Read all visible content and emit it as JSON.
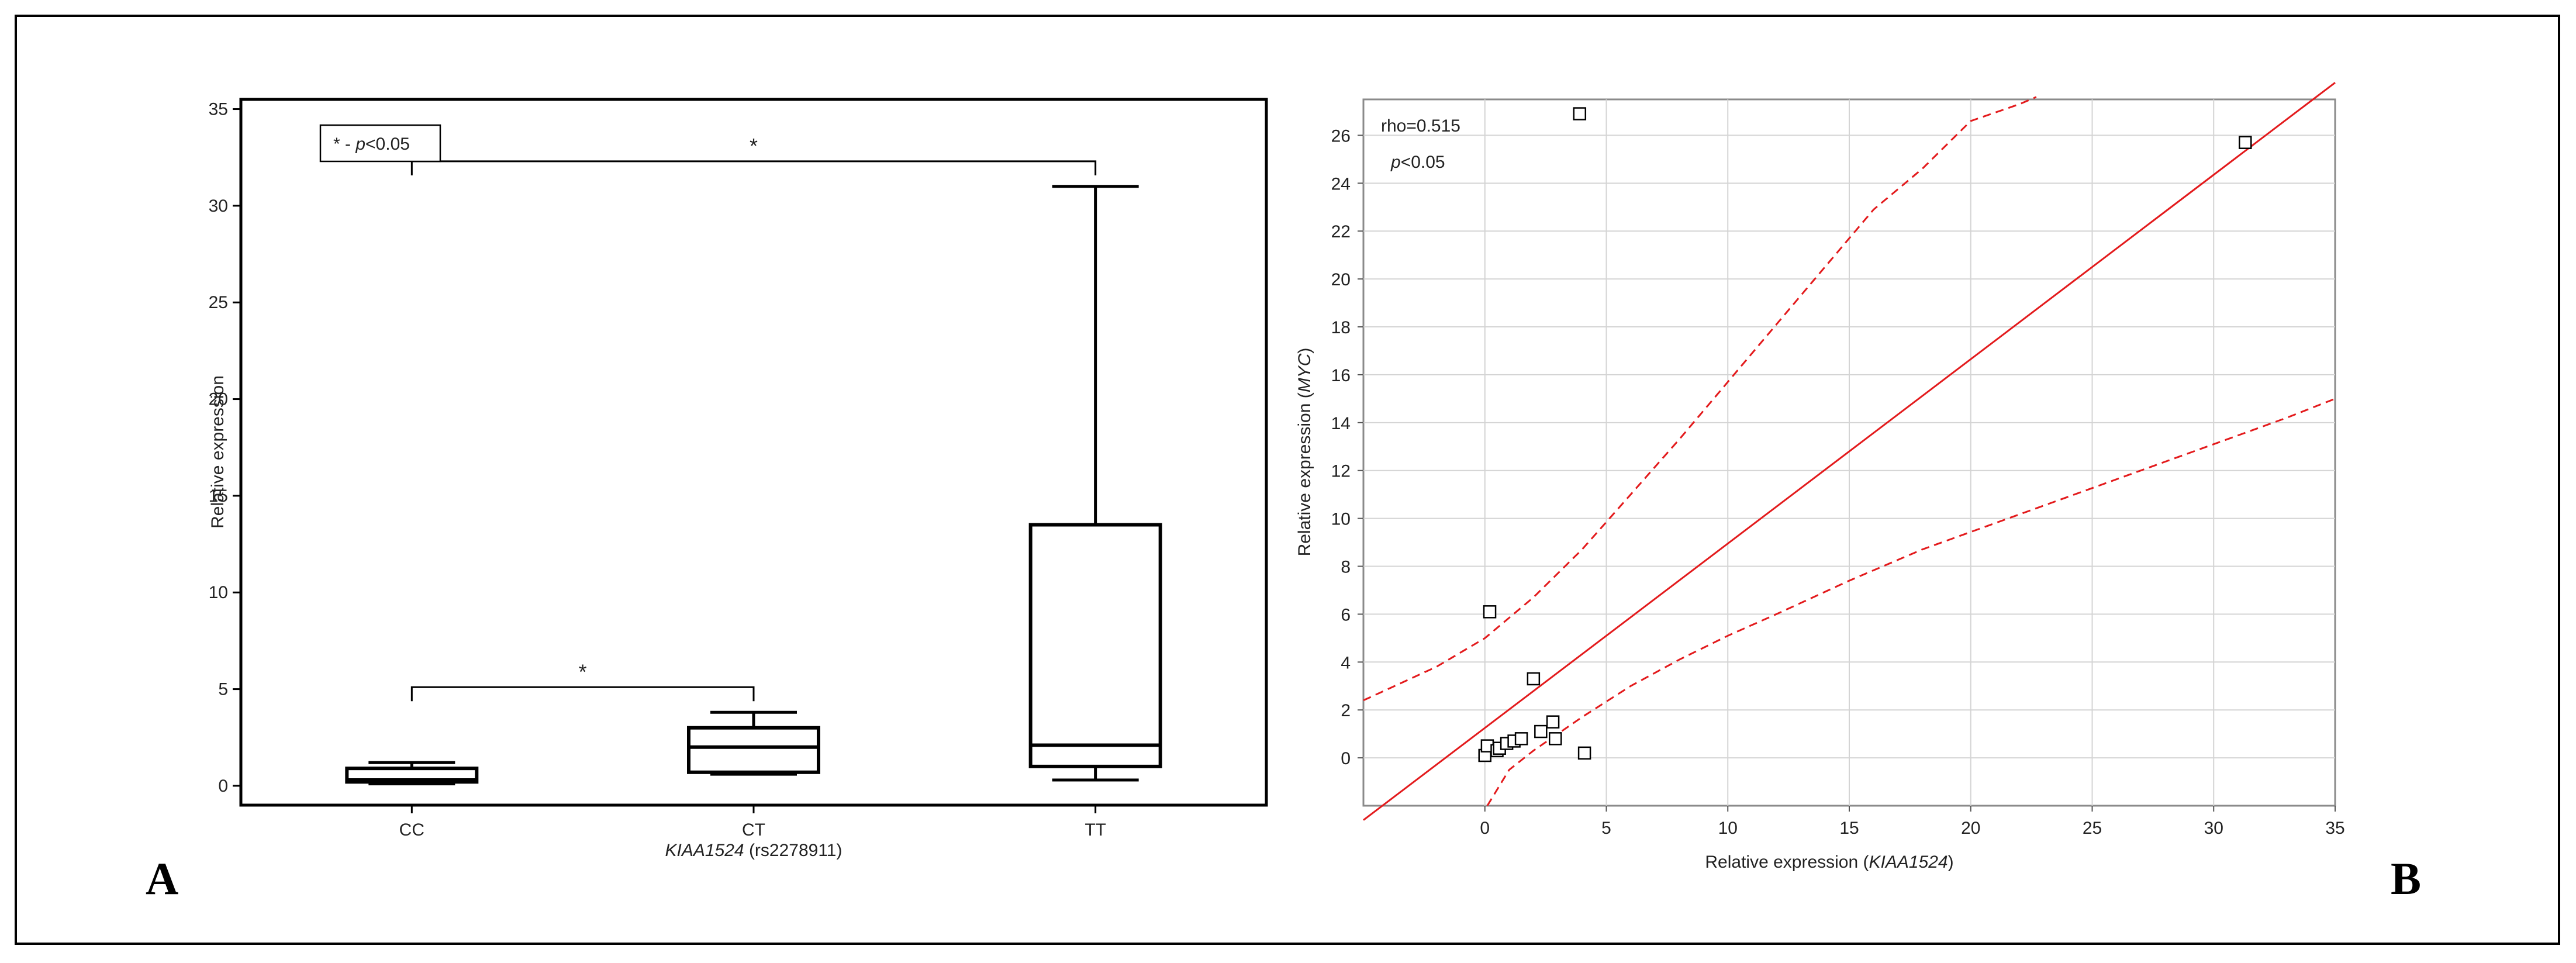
{
  "figure": {
    "panel_a_letter": "A",
    "panel_b_letter": "B"
  },
  "chart_data": [
    {
      "type": "box",
      "title": "",
      "xlabel": "KIAA1524 (rs2278911)",
      "xlabel_italic": "KIAA1524",
      "xlabel_rest": " (rs2278911)",
      "ylabel": "Relative expression",
      "ylim": [
        -1,
        35.5
      ],
      "yticks": [
        0,
        5,
        10,
        15,
        20,
        25,
        30,
        35
      ],
      "categories": [
        "CC",
        "CT",
        "TT"
      ],
      "boxes": [
        {
          "category": "CC",
          "whisker_low": 0.1,
          "q1": 0.2,
          "median": 0.3,
          "q3": 0.9,
          "whisker_high": 1.2
        },
        {
          "category": "CT",
          "whisker_low": 0.6,
          "q1": 0.7,
          "median": 2.0,
          "q3": 3.0,
          "whisker_high": 3.8
        },
        {
          "category": "TT",
          "whisker_low": 0.3,
          "q1": 1.0,
          "median": 2.1,
          "q3": 13.5,
          "whisker_high": 31.0
        }
      ],
      "significance": [
        {
          "from": "CC",
          "to": "TT",
          "label": "*",
          "y": 32.3
        },
        {
          "from": "CC",
          "to": "CT",
          "label": "*",
          "y": 5.1
        }
      ],
      "legend": {
        "text_prefix": "* - ",
        "text_p": "p",
        "text_suffix": "<0.05",
        "position": "top-left"
      }
    },
    {
      "type": "scatter",
      "title": "",
      "xlabel_prefix": "Relative expression  (",
      "xlabel_italic": "KIAA1524",
      "xlabel_suffix": ")",
      "ylabel_prefix": "Relative expression (",
      "ylabel_italic": "MYC",
      "ylabel_suffix": ")",
      "xlim": [
        -5,
        35
      ],
      "ylim": [
        -2,
        27.5
      ],
      "xticks": [
        0,
        5,
        10,
        15,
        20,
        25,
        30,
        35
      ],
      "yticks": [
        0,
        2,
        4,
        6,
        8,
        10,
        12,
        14,
        16,
        18,
        20,
        22,
        24,
        26
      ],
      "grid": true,
      "points": [
        {
          "x": 3.9,
          "y": 26.9
        },
        {
          "x": 31.3,
          "y": 25.7
        },
        {
          "x": 0.2,
          "y": 6.1
        },
        {
          "x": 2.0,
          "y": 3.3
        },
        {
          "x": 0.0,
          "y": 0.1
        },
        {
          "x": 0.1,
          "y": 0.5
        },
        {
          "x": 0.5,
          "y": 0.3
        },
        {
          "x": 0.6,
          "y": 0.4
        },
        {
          "x": 0.9,
          "y": 0.6
        },
        {
          "x": 1.2,
          "y": 0.7
        },
        {
          "x": 1.5,
          "y": 0.8
        },
        {
          "x": 2.3,
          "y": 1.1
        },
        {
          "x": 2.8,
          "y": 1.5
        },
        {
          "x": 2.9,
          "y": 0.8
        },
        {
          "x": 4.1,
          "y": 0.2
        }
      ],
      "regression_line": {
        "x": [
          -5,
          35
        ],
        "y": [
          -2.6,
          28.2
        ]
      },
      "ci_upper": {
        "x": [
          -5,
          -2,
          0,
          2,
          4,
          6,
          8,
          10,
          12,
          14,
          16,
          18,
          20,
          22,
          22.7
        ],
        "y": [
          2.4,
          3.8,
          5.0,
          6.7,
          8.7,
          11.0,
          13.3,
          15.7,
          18.1,
          20.5,
          22.9,
          24.6,
          26.6,
          27.3,
          27.6
        ]
      },
      "ci_lower": {
        "x": [
          0.1,
          1,
          2,
          4,
          6,
          8,
          10,
          12,
          15,
          18,
          21,
          24,
          27,
          30,
          33,
          35
        ],
        "y": [
          -2.0,
          -0.5,
          0.3,
          1.7,
          3.0,
          4.1,
          5.1,
          6.0,
          7.4,
          8.7,
          9.8,
          10.9,
          12.0,
          13.1,
          14.2,
          15.0
        ]
      },
      "annotations": {
        "rho": "rho=0.515",
        "p_italic": "p",
        "p_rest": "<0.05"
      }
    }
  ]
}
